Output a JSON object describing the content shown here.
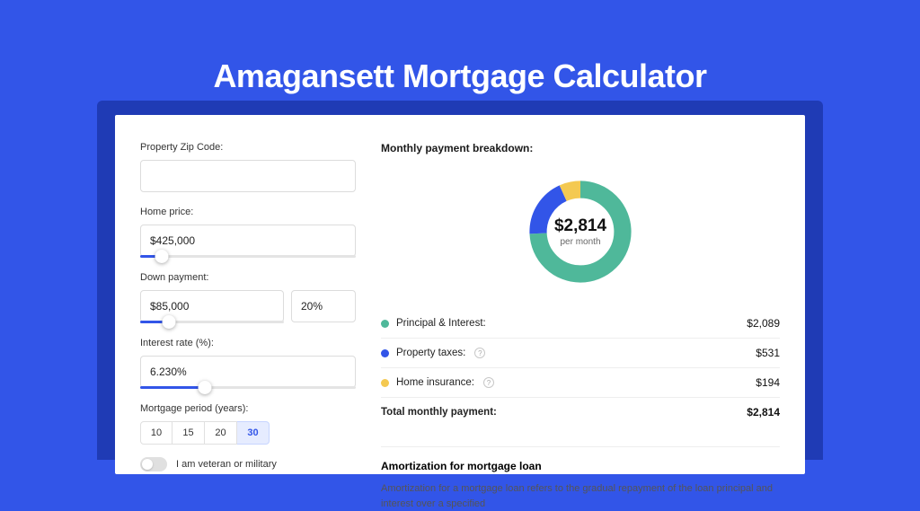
{
  "colors": {
    "page_bg": "#3255e8",
    "shadow_bg": "#1f3bb5",
    "card_bg": "#ffffff",
    "accent": "#3255e8",
    "donut_principal": "#4fb89a",
    "donut_taxes": "#3255e8",
    "donut_insurance": "#f4c951"
  },
  "title": "Amagansett Mortgage Calculator",
  "form": {
    "zip_label": "Property Zip Code:",
    "zip_value": "",
    "home_price_label": "Home price:",
    "home_price_value": "$425,000",
    "home_price_slider_pct": 10,
    "down_payment_label": "Down payment:",
    "down_payment_value": "$85,000",
    "down_payment_pct_value": "20%",
    "down_payment_slider_pct": 20,
    "interest_label": "Interest rate (%):",
    "interest_value": "6.230%",
    "interest_slider_pct": 30,
    "period_label": "Mortgage period (years):",
    "period_options": [
      "10",
      "15",
      "20",
      "30"
    ],
    "period_selected": "30",
    "veteran_label": "I am veteran or military",
    "veteran_on": false
  },
  "breakdown": {
    "title": "Monthly payment breakdown:",
    "center_amount": "$2,814",
    "center_sub": "per month",
    "donut_segments": [
      {
        "key": "principal",
        "color": "#4fb89a",
        "pct": 74.2
      },
      {
        "key": "taxes",
        "color": "#3255e8",
        "pct": 18.9
      },
      {
        "key": "insurance",
        "color": "#f4c951",
        "pct": 6.9
      }
    ],
    "rows": [
      {
        "label": "Principal & Interest:",
        "value": "$2,089",
        "color": "#4fb89a",
        "info": false
      },
      {
        "label": "Property taxes:",
        "value": "$531",
        "color": "#3255e8",
        "info": true
      },
      {
        "label": "Home insurance:",
        "value": "$194",
        "color": "#f4c951",
        "info": true
      }
    ],
    "total_label": "Total monthly payment:",
    "total_value": "$2,814"
  },
  "amortization": {
    "title": "Amortization for mortgage loan",
    "text": "Amortization for a mortgage loan refers to the gradual repayment of the loan principal and interest over a specified"
  }
}
